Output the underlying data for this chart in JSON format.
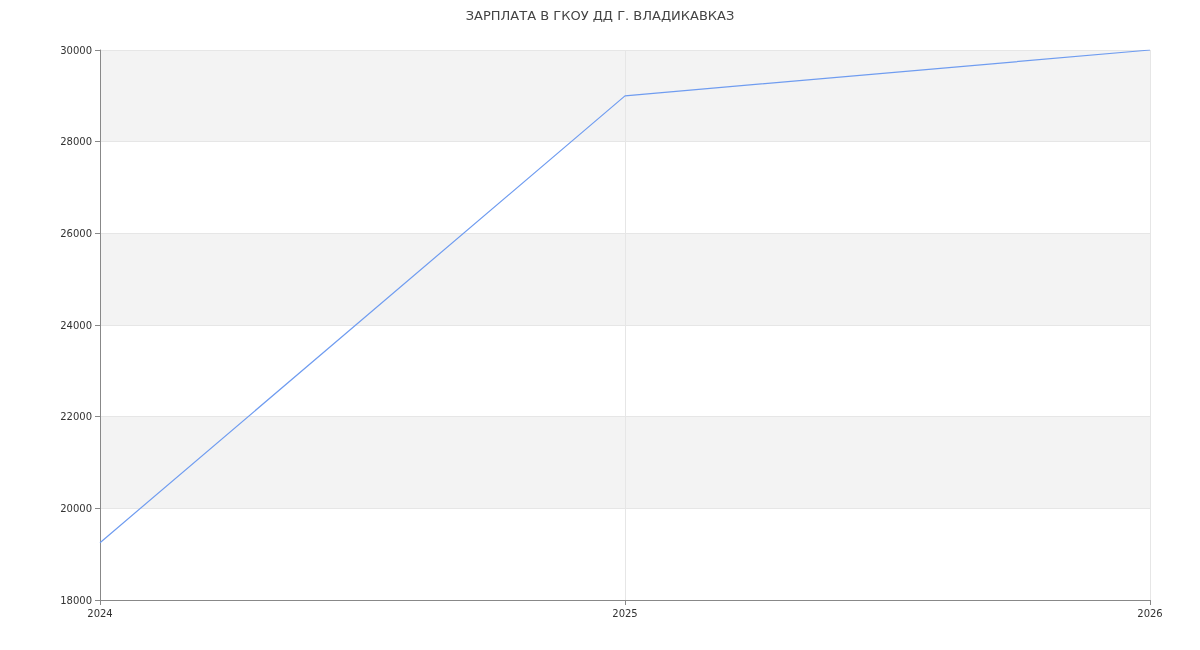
{
  "chart_data": {
    "type": "line",
    "title": "ЗАРПЛАТА В ГКОУ ДД Г. ВЛАДИКАВКАЗ",
    "x": [
      2024,
      2025,
      2026
    ],
    "series": [
      {
        "color": "#6f9cf0",
        "values": [
          19250,
          29000,
          30000
        ]
      }
    ],
    "xlim": [
      2024,
      2026
    ],
    "xticks": [
      2024,
      2025,
      2026
    ],
    "ylim": [
      18000,
      30000
    ],
    "yticks": [
      18000,
      20000,
      22000,
      24000,
      26000,
      28000,
      30000
    ],
    "grid": true,
    "marker": "none",
    "line_style": "solid"
  }
}
